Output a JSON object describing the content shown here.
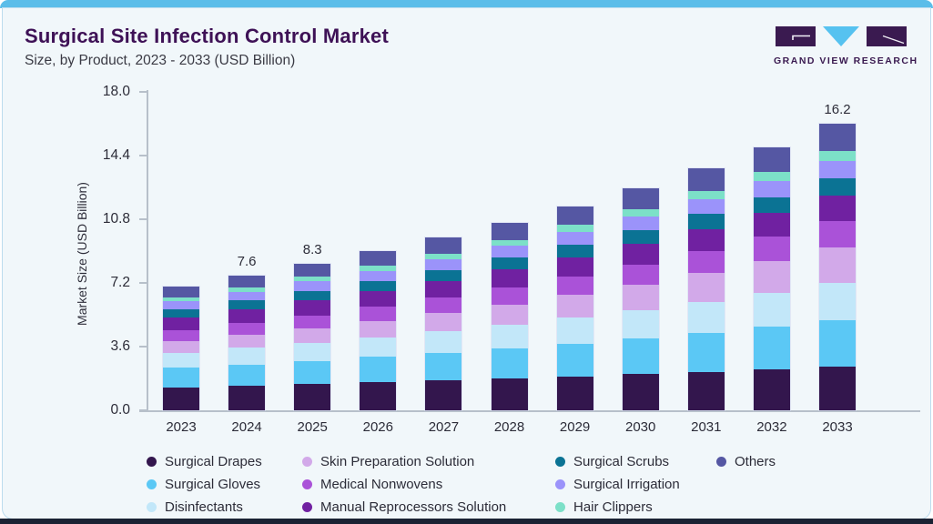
{
  "page": {
    "title": "Surgical Site Infection Control Market",
    "subtitle": "Size, by Product, 2023 - 2033 (USD Billion)"
  },
  "logo": {
    "text": "GRAND VIEW RESEARCH"
  },
  "colors": {
    "accent_top_bar": "#5bbde9",
    "footer_bar": "#1a2233",
    "card_background": "#f1f7fa",
    "card_border": "#bcdcee",
    "title_text": "#3e1156",
    "body_text": "#2c2c38",
    "axis_line": "#b7c0ca",
    "logo_purple": "#3a1a50",
    "logo_blue": "#56c2f0"
  },
  "chart_data": {
    "type": "bar",
    "stacked": true,
    "title": "Surgical Site Infection Control Market Size, by Product, 2023 - 2033 (USD Billion)",
    "xlabel": "",
    "ylabel": "Market Size (USD Billion)",
    "ylim": [
      0,
      18
    ],
    "ytick_labels": [
      "0.0",
      "3.6",
      "7.2",
      "10.8",
      "14.4",
      "18.0"
    ],
    "grid": false,
    "legend_position": "bottom",
    "categories": [
      "2023",
      "2024",
      "2025",
      "2026",
      "2027",
      "2028",
      "2029",
      "2030",
      "2031",
      "2032",
      "2033"
    ],
    "total_labels": {
      "2024": "7.6",
      "2025": "8.3",
      "2033": "16.2"
    },
    "series": [
      {
        "name": "Surgical Drapes",
        "color": "#33164d",
        "values": [
          1.3,
          1.39,
          1.48,
          1.58,
          1.68,
          1.79,
          1.91,
          2.04,
          2.17,
          2.32,
          2.47
        ]
      },
      {
        "name": "Surgical Gloves",
        "color": "#5bc8f5",
        "values": [
          1.1,
          1.2,
          1.31,
          1.43,
          1.56,
          1.7,
          1.86,
          2.03,
          2.22,
          2.42,
          2.64
        ]
      },
      {
        "name": "Disinfectants",
        "color": "#c2e7f9",
        "values": [
          0.86,
          0.94,
          1.03,
          1.12,
          1.23,
          1.34,
          1.47,
          1.6,
          1.75,
          1.91,
          2.09
        ]
      },
      {
        "name": "Skin Preparation Solution",
        "color": "#d2a9e9",
        "values": [
          0.66,
          0.74,
          0.83,
          0.92,
          1.03,
          1.16,
          1.29,
          1.45,
          1.62,
          1.81,
          2.03
        ]
      },
      {
        "name": "Medical Nonwovens",
        "color": "#aa52d8",
        "values": [
          0.6,
          0.66,
          0.72,
          0.79,
          0.86,
          0.94,
          1.03,
          1.13,
          1.23,
          1.35,
          1.48
        ]
      },
      {
        "name": "Manual Reprocessors Solution",
        "color": "#7021a1",
        "values": [
          0.73,
          0.78,
          0.84,
          0.89,
          0.96,
          1.02,
          1.09,
          1.17,
          1.25,
          1.34,
          1.43
        ]
      },
      {
        "name": "Surgical Scrubs",
        "color": "#0b7394",
        "values": [
          0.46,
          0.5,
          0.54,
          0.58,
          0.62,
          0.67,
          0.73,
          0.78,
          0.85,
          0.91,
          0.99
        ]
      },
      {
        "name": "Surgical Irrigation",
        "color": "#9b93fa",
        "values": [
          0.47,
          0.5,
          0.54,
          0.58,
          0.62,
          0.67,
          0.72,
          0.77,
          0.82,
          0.88,
          0.95
        ]
      },
      {
        "name": "Hair Clippers",
        "color": "#7ce0c8",
        "values": [
          0.2,
          0.22,
          0.25,
          0.28,
          0.31,
          0.34,
          0.38,
          0.42,
          0.47,
          0.52,
          0.58
        ]
      },
      {
        "name": "Others",
        "color": "#5557a3",
        "values": [
          0.63,
          0.69,
          0.75,
          0.82,
          0.9,
          0.98,
          1.07,
          1.17,
          1.28,
          1.4,
          1.53
        ]
      }
    ],
    "legend_rows": [
      [
        "Surgical Drapes",
        "Skin Preparation Solution",
        "Surgical Scrubs",
        "Others"
      ],
      [
        "Surgical Gloves",
        "Medical Nonwovens",
        "Surgical Irrigation"
      ],
      [
        "Disinfectants",
        "Manual Reprocessors Solution",
        "Hair Clippers"
      ]
    ]
  }
}
